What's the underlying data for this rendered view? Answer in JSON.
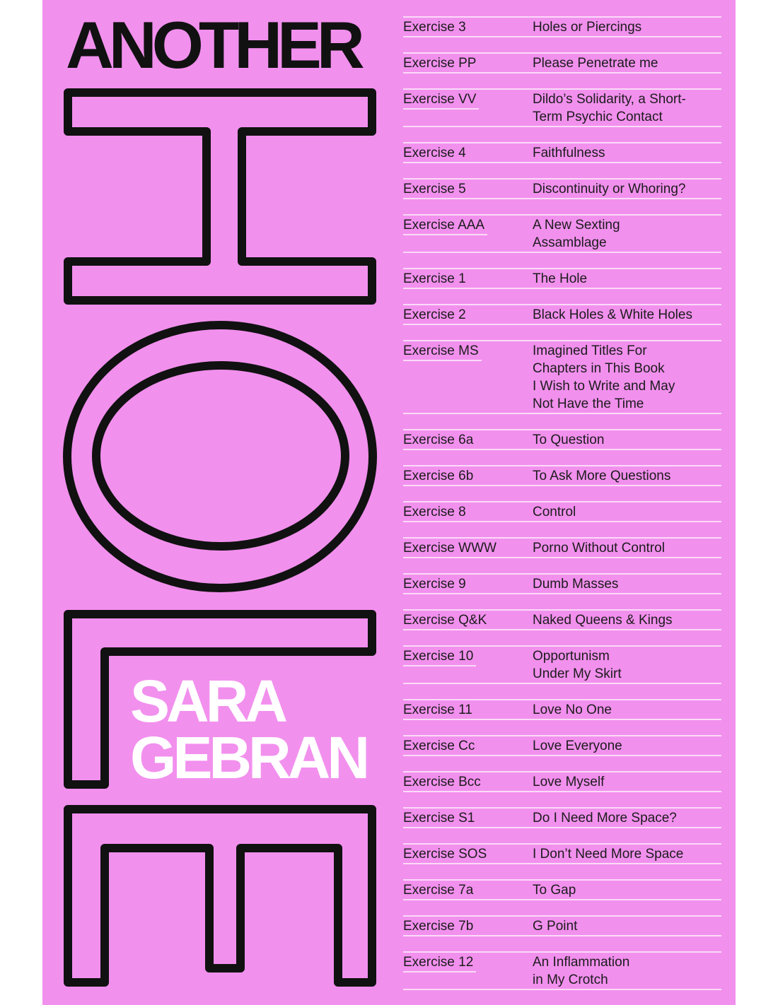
{
  "cover": {
    "title_top": "ANOTHER",
    "title_outline": "HOLE",
    "author_lines": [
      "SARA",
      "GEBRAN"
    ],
    "colors": {
      "background": "#f290ee",
      "outline": "#111111",
      "author": "#ffffff",
      "rules": "#fbdaf8"
    }
  },
  "toc": [
    {
      "label": "Exercise 3",
      "title": [
        "Holes or Piercings"
      ]
    },
    {
      "label": "Exercise PP",
      "title": [
        "Please Penetrate me"
      ]
    },
    {
      "label": "Exercise VV",
      "title": [
        "Dildo’s Solidarity, a Short-",
        "Term Psychic Contact"
      ]
    },
    {
      "label": "Exercise 4",
      "title": [
        "Faithfulness"
      ]
    },
    {
      "label": "Exercise 5",
      "title": [
        "Discontinuity or Whoring?"
      ]
    },
    {
      "label": "Exercise AAA",
      "title": [
        "A New Sexting",
        "Assamblage"
      ]
    },
    {
      "label": "Exercise 1",
      "title": [
        "The Hole"
      ]
    },
    {
      "label": "Exercise 2",
      "title": [
        "Black Holes & White Holes"
      ]
    },
    {
      "label": "Exercise MS",
      "title": [
        "Imagined Titles For",
        "Chapters in This Book",
        "I Wish to Write and May",
        "Not Have the Time"
      ]
    },
    {
      "label": "Exercise 6a",
      "title": [
        "To Question"
      ]
    },
    {
      "label": "Exercise 6b",
      "title": [
        "To Ask More Questions"
      ]
    },
    {
      "label": "Exercise 8",
      "title": [
        "Control"
      ]
    },
    {
      "label": "Exercise WWW",
      "title": [
        "Porno Without Control"
      ]
    },
    {
      "label": "Exercise 9",
      "title": [
        "Dumb Masses"
      ]
    },
    {
      "label": "Exercise Q&K",
      "title": [
        "Naked Queens & Kings"
      ]
    },
    {
      "label": "Exercise 10",
      "title": [
        "Opportunism",
        "Under My Skirt"
      ]
    },
    {
      "label": "Exercise 11",
      "title": [
        "Love No One"
      ]
    },
    {
      "label": "Exercise Cc",
      "title": [
        "Love Everyone"
      ]
    },
    {
      "label": "Exercise Bcc",
      "title": [
        "Love Myself"
      ]
    },
    {
      "label": "Exercise S1",
      "title": [
        "Do I Need More Space?"
      ]
    },
    {
      "label": "Exercise SOS",
      "title": [
        "I Don’t Need More Space"
      ]
    },
    {
      "label": "Exercise 7a",
      "title": [
        "To Gap"
      ]
    },
    {
      "label": "Exercise 7b",
      "title": [
        "G Point"
      ]
    },
    {
      "label": "Exercise 12",
      "title": [
        "An Inflammation",
        "in My Crotch"
      ]
    }
  ]
}
